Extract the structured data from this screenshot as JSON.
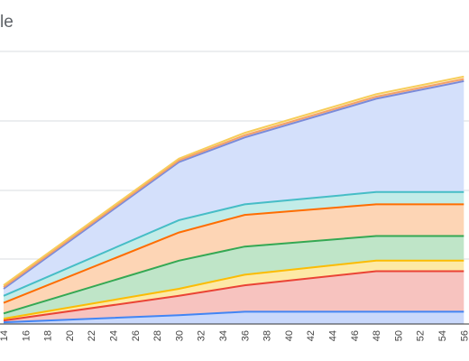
{
  "chart_data": {
    "type": "area",
    "title_fragment": "le",
    "x": [
      14,
      30,
      36,
      48,
      56
    ],
    "x_ticks": [
      "14",
      "16",
      "18",
      "20",
      "22",
      "24",
      "26",
      "28",
      "30",
      "32",
      "34",
      "36",
      "38",
      "40",
      "42",
      "44",
      "46",
      "48",
      "50",
      "52",
      "54",
      "56"
    ],
    "grid": true,
    "series": [
      {
        "color": "#4285f4",
        "fill": "#c9d8fb",
        "values": [
          0.5,
          2.5,
          3.5,
          3.5,
          3.5
        ]
      },
      {
        "color": "#ea4335",
        "fill": "#f7c3bf",
        "values": [
          1.0,
          8.0,
          11.0,
          15.0,
          15.0
        ]
      },
      {
        "color": "#fbbc04",
        "fill": "#fde9a6",
        "values": [
          1.5,
          10.0,
          14.0,
          18.0,
          18.0
        ]
      },
      {
        "color": "#34a853",
        "fill": "#bfe5c8",
        "values": [
          3.0,
          18.0,
          22.0,
          25.0,
          25.0
        ]
      },
      {
        "color": "#ff6d01",
        "fill": "#fdd5b5",
        "values": [
          6.0,
          26.0,
          31.0,
          34.0,
          34.0
        ]
      },
      {
        "color": "#46bdc6",
        "fill": "#c2ece8",
        "values": [
          8.0,
          29.5,
          34.0,
          37.5,
          37.5
        ]
      },
      {
        "color": "#7b8bd9",
        "fill": "#d4e0fb",
        "values": [
          10.0,
          46.0,
          53.0,
          64.0,
          69.0
        ]
      },
      {
        "color": "#f3a06b",
        "fill": "#fce3ce",
        "values": [
          10.5,
          46.5,
          53.6,
          64.6,
          69.6
        ]
      },
      {
        "color": "#f7cd5a",
        "fill": "#fdf0c6",
        "values": [
          11.0,
          47.0,
          54.3,
          65.3,
          70.3
        ]
      }
    ]
  }
}
